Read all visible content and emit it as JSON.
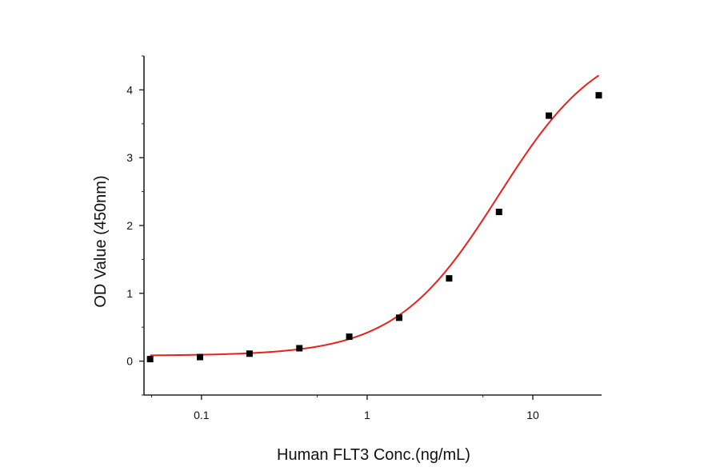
{
  "chart_data": {
    "type": "scatter",
    "title": "",
    "xlabel": "Human FLT3 Conc.(ng/mL)",
    "ylabel": "OD Value (450nm)",
    "x_scale": "log",
    "xlim": [
      0.045,
      26
    ],
    "ylim": [
      -0.5,
      4.5
    ],
    "x_ticks": [
      0.1,
      1,
      10
    ],
    "x_tick_labels": [
      "0.1",
      "1",
      "10"
    ],
    "y_ticks": [
      0,
      1,
      2,
      3,
      4
    ],
    "y_tick_labels": [
      "0",
      "1",
      "2",
      "3",
      "4"
    ],
    "grid": false,
    "legend": "none",
    "points": {
      "x": [
        0.049,
        0.098,
        0.195,
        0.39,
        0.78,
        1.56,
        3.125,
        6.25,
        12.5,
        25
      ],
      "y": [
        0.03,
        0.06,
        0.11,
        0.19,
        0.36,
        0.64,
        1.22,
        2.2,
        3.62,
        3.92
      ],
      "color": "#000000"
    },
    "fit_curve": {
      "model": "4PL",
      "bottom": 0.08,
      "top": 4.8,
      "ec50": 6.2,
      "hill": 1.4,
      "color": "#e8211b"
    }
  }
}
